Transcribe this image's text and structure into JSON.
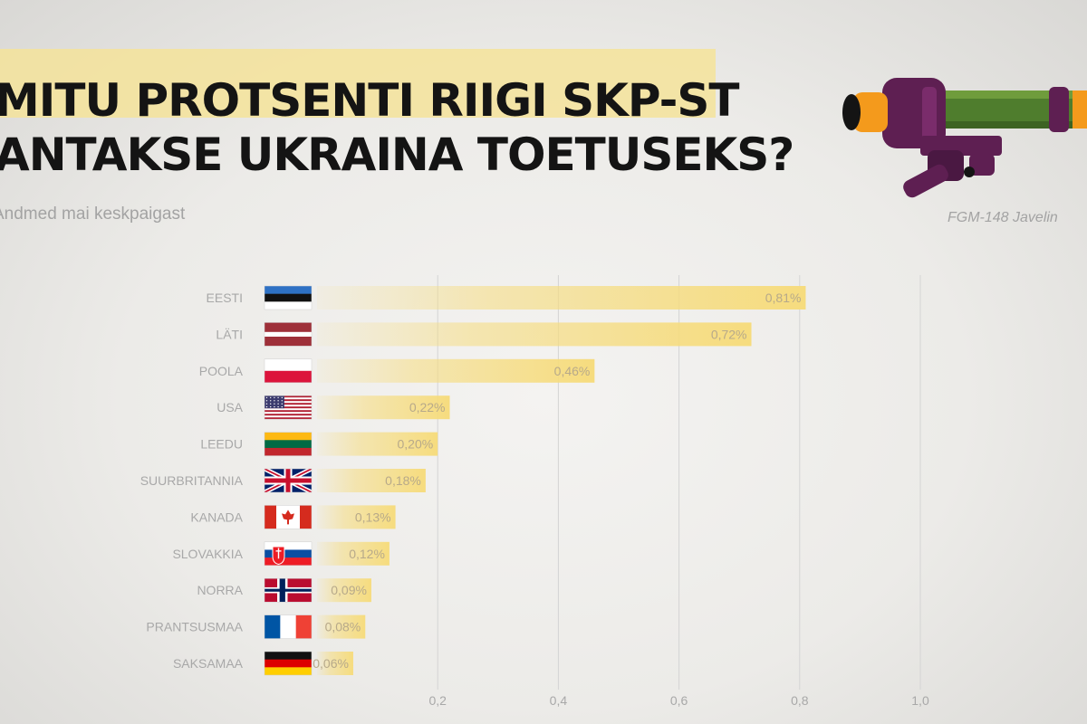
{
  "header": {
    "title_line1": "MITU PROTSENTI RIIGI SKP-ST",
    "title_line2": "ANTAKSE UKRAINA TOETUSEKS?",
    "subtitle": "Andmed mai keskpaigast",
    "illustration_caption": "FGM-148 Javelin"
  },
  "colors": {
    "bar": "#f6dc7e",
    "highlight": "#f5e39a",
    "gridline": "#d4d4d4",
    "label": "#a8a8a8",
    "weapon_purple": "#5e1f52",
    "weapon_green": "#4f7d2d",
    "weapon_orange": "#f49a1c"
  },
  "chart_data": {
    "type": "bar",
    "orientation": "horizontal",
    "categories": [
      "EESTI",
      "LÄTI",
      "POOLA",
      "USA",
      "LEEDU",
      "SUURBRITANNIA",
      "KANADA",
      "SLOVAKKIA",
      "NORRA",
      "PRANTSUSMAA",
      "SAKSAMAA"
    ],
    "values": [
      0.81,
      0.72,
      0.46,
      0.22,
      0.2,
      0.18,
      0.13,
      0.12,
      0.09,
      0.08,
      0.06
    ],
    "value_labels": [
      "0,81%",
      "0,72%",
      "0,46%",
      "0,22%",
      "0,20%",
      "0,18%",
      "0,13%",
      "0,12%",
      "0,09%",
      "0,08%",
      "0,06%"
    ],
    "flags": [
      "estonia-flag",
      "latvia-flag",
      "poland-flag",
      "usa-flag",
      "lithuania-flag",
      "uk-flag",
      "canada-flag",
      "slovakia-flag",
      "norway-flag",
      "france-flag",
      "germany-flag"
    ],
    "xticks": [
      0.2,
      0.4,
      0.6,
      0.8,
      1.0
    ],
    "xtick_labels": [
      "0,2",
      "0,4",
      "0,6",
      "0,8",
      "1,0"
    ],
    "xlim": [
      0,
      1.0
    ],
    "grid": true,
    "legend": "none"
  }
}
